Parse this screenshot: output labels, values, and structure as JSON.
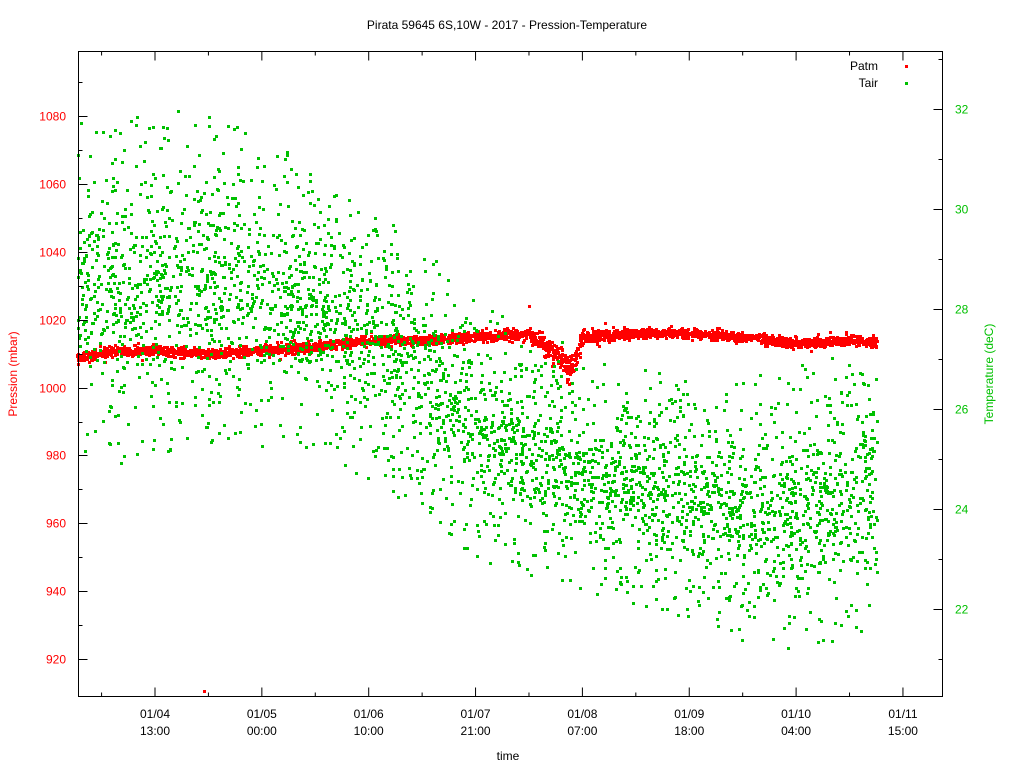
{
  "chart_data": {
    "type": "scatter",
    "title": "Pirata 59645 6S,10W - 2017 - Pression-Temperature",
    "xlabel": "time",
    "ylabel": "Pression (mbar)",
    "y2label": "Temperature (deC)",
    "x_tick_labels": [
      [
        "01/04",
        "13:00"
      ],
      [
        "01/05",
        "00:00"
      ],
      [
        "01/06",
        "10:00"
      ],
      [
        "01/07",
        "21:00"
      ],
      [
        "01/08",
        "07:00"
      ],
      [
        "01/09",
        "18:00"
      ],
      [
        "01/10",
        "04:00"
      ],
      [
        "01/11",
        "15:00"
      ]
    ],
    "y_ticks": [
      920,
      940,
      960,
      980,
      1000,
      1020,
      1040,
      1060,
      1080
    ],
    "ylim": [
      909,
      1099
    ],
    "y2_ticks": [
      22,
      24,
      26,
      28,
      30,
      32
    ],
    "y2lim": [
      20.26,
      33.14
    ],
    "grid": false,
    "legend_position": "top-right",
    "colors": {
      "Patm": "#ff0000",
      "Tair": "#00c000",
      "left_axis": "#ff0000",
      "right_axis": "#00c000"
    },
    "series": [
      {
        "name": "Patm",
        "axis": "left",
        "note_sampled": "representative samples: time, mean, half-spread",
        "samples": [
          [
            "01/04 05:00",
            1009,
            1.2
          ],
          [
            "01/04 09:00",
            1011,
            1.2
          ],
          [
            "01/04 13:00",
            1011,
            1.2
          ],
          [
            "01/04 18:30",
            1010,
            1.2
          ],
          [
            "01/05 00:00",
            1011,
            1.2
          ],
          [
            "01/05 17:00",
            1012,
            1.2
          ],
          [
            "01/06 10:00",
            1014,
            1.2
          ],
          [
            "01/07 03:30",
            1014,
            1.2
          ],
          [
            "01/07 21:00",
            1015,
            1.2
          ],
          [
            "01/08 02:00",
            1016,
            1.3
          ],
          [
            "01/08 06:00",
            1006,
            4
          ],
          [
            "01/08 07:00",
            1015,
            2
          ],
          [
            "01/09 00:30",
            1016,
            1.2
          ],
          [
            "01/09 18:00",
            1016,
            1.2
          ],
          [
            "01/09 23:00",
            1015,
            1.2
          ],
          [
            "01/10 04:00",
            1013,
            1.3
          ],
          [
            "01/10 21:30",
            1014,
            1.2
          ],
          [
            "01/11 06:30",
            1013,
            1.5
          ]
        ],
        "outliers": [
          [
            "01/04 18:00",
            910.5
          ],
          [
            "01/08 02:00",
            1024
          ]
        ]
      },
      {
        "name": "Tair",
        "axis": "right",
        "samples": [
          [
            "01/04 05:00",
            28.5,
            1.5
          ],
          [
            "01/04 09:00",
            28.3,
            1.6
          ],
          [
            "01/04 13:00",
            28.5,
            1.6
          ],
          [
            "01/04 18:30",
            28.6,
            1.5
          ],
          [
            "01/05 00:00",
            28.3,
            1.4
          ],
          [
            "01/05 17:00",
            28.0,
            1.3
          ],
          [
            "01/06 10:00",
            27.4,
            1.3
          ],
          [
            "01/07 03:30",
            26.6,
            1.2
          ],
          [
            "01/07 21:00",
            25.6,
            1.2
          ],
          [
            "01/08 02:00",
            25.1,
            1.1
          ],
          [
            "01/08 06:00",
            24.9,
            1.1
          ],
          [
            "01/08 07:00",
            24.8,
            1.1
          ],
          [
            "01/09 00:30",
            24.5,
            1.1
          ],
          [
            "01/09 18:00",
            24.2,
            1.1
          ],
          [
            "01/09 23:00",
            24.0,
            1.2
          ],
          [
            "01/10 04:00",
            24.0,
            1.3
          ],
          [
            "01/10 21:30",
            24.3,
            1.3
          ],
          [
            "01/11 06:30",
            24.3,
            1.2
          ]
        ]
      }
    ]
  }
}
